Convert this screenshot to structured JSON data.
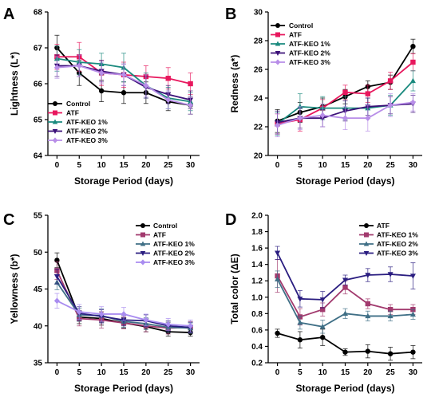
{
  "chart_data": [
    {
      "panel": "A",
      "type": "line",
      "xlabel": "Storage Period (days)",
      "ylabel": "Lightness (L*)",
      "x": [
        0,
        5,
        10,
        15,
        20,
        25,
        30
      ],
      "ylim": [
        64,
        68
      ],
      "yticks": [
        64,
        65,
        66,
        67,
        68
      ],
      "grid": false,
      "legend_position": "bottom-left",
      "series": [
        {
          "name": "Control",
          "color": "#000000",
          "marker": "circle",
          "values": [
            67.0,
            66.3,
            65.8,
            65.75,
            65.75,
            65.5,
            65.4
          ],
          "errors": [
            0.35,
            0.35,
            0.3,
            0.3,
            0.3,
            0.25,
            0.25
          ]
        },
        {
          "name": "ATF",
          "color": "#e8175d",
          "marker": "square",
          "values": [
            66.75,
            66.75,
            66.3,
            66.25,
            66.2,
            66.15,
            66.0
          ],
          "errors": [
            0.35,
            0.4,
            0.35,
            0.35,
            0.3,
            0.3,
            0.3
          ]
        },
        {
          "name": "ATF-KEO 1%",
          "color": "#1a8a7e",
          "marker": "triangle",
          "values": [
            66.7,
            66.6,
            66.55,
            66.45,
            65.95,
            65.6,
            65.5
          ],
          "errors": [
            0.35,
            0.35,
            0.3,
            0.4,
            0.35,
            0.3,
            0.25
          ]
        },
        {
          "name": "ATF-KEO 2%",
          "color": "#3b1078",
          "marker": "triangle-down",
          "values": [
            66.5,
            66.5,
            66.35,
            66.25,
            65.9,
            65.7,
            65.55
          ],
          "errors": [
            0.3,
            0.3,
            0.3,
            0.3,
            0.3,
            0.25,
            0.25
          ]
        },
        {
          "name": "ATF-KEO 3%",
          "color": "#b88ee8",
          "marker": "diamond",
          "values": [
            66.45,
            66.5,
            66.3,
            66.25,
            65.95,
            65.55,
            65.4
          ],
          "errors": [
            0.3,
            0.3,
            0.3,
            0.3,
            0.3,
            0.25,
            0.25
          ]
        }
      ]
    },
    {
      "panel": "B",
      "type": "line",
      "xlabel": "Storage Period (days)",
      "ylabel": "Redness (a*)",
      "x": [
        0,
        5,
        10,
        15,
        20,
        25,
        30
      ],
      "ylim": [
        20,
        30
      ],
      "yticks": [
        20,
        22,
        24,
        26,
        28,
        30
      ],
      "grid": false,
      "legend_position": "top-left",
      "series": [
        {
          "name": "Control",
          "color": "#000000",
          "marker": "circle",
          "values": [
            22.4,
            23.0,
            23.4,
            24.1,
            24.8,
            25.1,
            27.6
          ],
          "errors": [
            0.8,
            0.7,
            0.6,
            0.5,
            0.4,
            0.5,
            0.5
          ]
        },
        {
          "name": "ATF",
          "color": "#e8175d",
          "marker": "square",
          "values": [
            22.2,
            22.5,
            23.3,
            24.4,
            24.3,
            25.2,
            26.5
          ],
          "errors": [
            0.7,
            0.8,
            0.6,
            0.5,
            0.6,
            0.6,
            0.6
          ]
        },
        {
          "name": "ATF-KEO 1%",
          "color": "#1a8a7e",
          "marker": "triangle",
          "values": [
            22.2,
            23.4,
            23.3,
            23.3,
            23.3,
            23.5,
            25.2
          ],
          "errors": [
            0.8,
            0.9,
            0.8,
            0.8,
            0.7,
            0.7,
            0.7
          ]
        },
        {
          "name": "ATF-KEO 2%",
          "color": "#3b1078",
          "marker": "triangle-down",
          "values": [
            22.3,
            22.6,
            22.6,
            23.1,
            23.4,
            23.5,
            23.6
          ],
          "errors": [
            0.8,
            0.7,
            0.6,
            0.7,
            0.6,
            0.6,
            0.6
          ]
        },
        {
          "name": "ATF-KEO 3%",
          "color": "#b88ee8",
          "marker": "diamond",
          "values": [
            22.1,
            22.6,
            22.8,
            22.6,
            22.6,
            23.5,
            23.7
          ],
          "errors": [
            0.8,
            0.8,
            0.8,
            0.8,
            0.9,
            0.8,
            0.6
          ]
        }
      ]
    },
    {
      "panel": "C",
      "type": "line",
      "xlabel": "Storage Period (days)",
      "ylabel": "Yellowness (b*)",
      "x": [
        0,
        5,
        10,
        15,
        20,
        25,
        30
      ],
      "ylim": [
        35,
        55
      ],
      "yticks": [
        35,
        40,
        45,
        50,
        55
      ],
      "grid": false,
      "legend_position": "top-right",
      "series": [
        {
          "name": "Control",
          "color": "#000000",
          "marker": "circle",
          "values": [
            48.9,
            41.2,
            41.0,
            40.4,
            39.9,
            39.2,
            39.1
          ],
          "errors": [
            1.0,
            0.9,
            0.9,
            0.7,
            0.7,
            0.6,
            0.5
          ]
        },
        {
          "name": "ATF",
          "color": "#a23a6e",
          "marker": "square",
          "values": [
            47.5,
            41.0,
            40.8,
            40.4,
            40.0,
            39.7,
            39.8
          ],
          "errors": [
            1.2,
            1.0,
            1.1,
            0.8,
            0.8,
            0.8,
            0.8
          ]
        },
        {
          "name": "ATF-KEO 1%",
          "color": "#3f6f86",
          "marker": "triangle",
          "values": [
            45.9,
            41.5,
            41.4,
            40.6,
            40.3,
            39.8,
            39.7
          ],
          "errors": [
            1.0,
            0.9,
            0.9,
            0.8,
            0.8,
            0.7,
            0.7
          ]
        },
        {
          "name": "ATF-KEO 2%",
          "color": "#2a1d80",
          "marker": "triangle-down",
          "values": [
            46.7,
            41.7,
            41.3,
            40.8,
            40.7,
            40.0,
            39.8
          ],
          "errors": [
            1.0,
            0.9,
            0.9,
            0.8,
            0.8,
            0.7,
            0.7
          ]
        },
        {
          "name": "ATF-KEO 3%",
          "color": "#a98cf0",
          "marker": "diamond",
          "values": [
            43.4,
            41.9,
            41.6,
            41.6,
            40.8,
            40.2,
            40.0
          ],
          "errors": [
            1.0,
            1.0,
            1.0,
            0.9,
            0.8,
            0.8,
            0.8
          ]
        }
      ]
    },
    {
      "panel": "D",
      "type": "line",
      "xlabel": "Storage Period (days)",
      "ylabel": "Total color (ΔE)",
      "x": [
        0,
        5,
        10,
        15,
        20,
        25,
        30
      ],
      "ylim": [
        0.2,
        2.0
      ],
      "yticks": [
        0.2,
        0.4,
        0.6,
        0.8,
        1.0,
        1.2,
        1.4,
        1.6,
        1.8,
        2.0
      ],
      "grid": false,
      "legend_position": "top-right",
      "series": [
        {
          "name": "ATF",
          "color": "#000000",
          "marker": "circle",
          "values": [
            0.56,
            0.48,
            0.51,
            0.33,
            0.34,
            0.31,
            0.33
          ],
          "errors": [
            0.05,
            0.1,
            0.1,
            0.04,
            0.08,
            0.08,
            0.08
          ]
        },
        {
          "name": "ATF-KEO 1%",
          "color": "#a23a6e",
          "marker": "square",
          "values": [
            1.26,
            0.76,
            0.85,
            1.12,
            0.92,
            0.85,
            0.85
          ],
          "errors": [
            0.2,
            0.1,
            0.08,
            0.08,
            0.06,
            0.06,
            0.06
          ]
        },
        {
          "name": "ATF-KEO 2%",
          "color": "#3f6f86",
          "marker": "triangle",
          "values": [
            1.22,
            0.69,
            0.64,
            0.8,
            0.77,
            0.77,
            0.79
          ],
          "errors": [
            0.1,
            0.08,
            0.08,
            0.06,
            0.06,
            0.06,
            0.06
          ]
        },
        {
          "name": "ATF-KEO 3%",
          "color": "#2a1d80",
          "marker": "triangle-down",
          "values": [
            1.54,
            0.98,
            0.97,
            1.21,
            1.27,
            1.28,
            1.26
          ],
          "errors": [
            0.08,
            0.1,
            0.1,
            0.06,
            0.08,
            0.09,
            0.16
          ]
        }
      ]
    }
  ]
}
